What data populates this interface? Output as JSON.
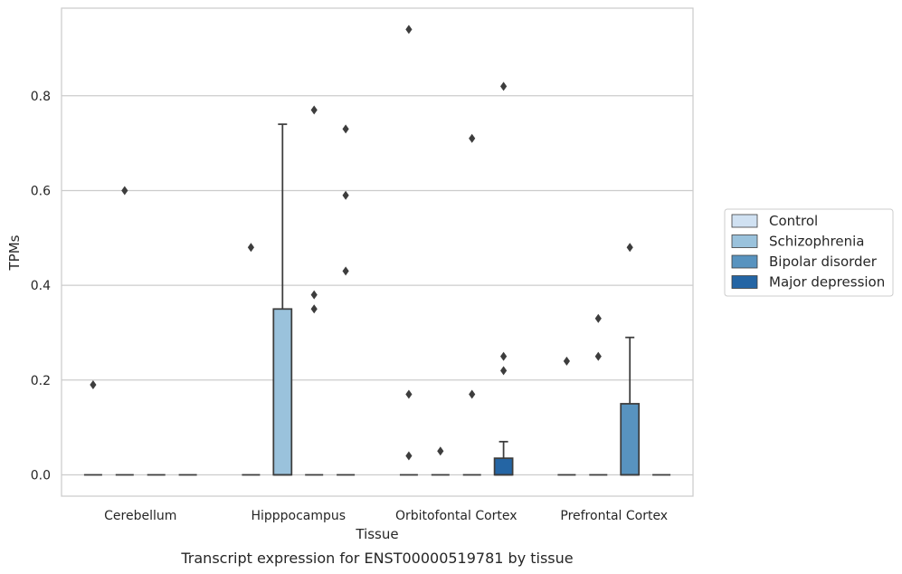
{
  "chart_data": {
    "type": "box",
    "caption": "Transcript expression for ENST00000519781 by tissue",
    "xlabel": "Tissue",
    "ylabel": "TPMs",
    "categories": [
      "Cerebellum",
      "Hipppocampus",
      "Orbitofontal Cortex",
      "Prefrontal Cortex"
    ],
    "ylim": [
      -0.045,
      0.985
    ],
    "yticks": [
      0.0,
      0.2,
      0.4,
      0.6,
      0.8
    ],
    "ytick_labels": [
      "0.0",
      "0.2",
      "0.4",
      "0.6",
      "0.8"
    ],
    "grid": "horizontal",
    "legend_position": "right",
    "series": [
      {
        "name": "Control",
        "color": "#d0e1f2",
        "boxes": [
          {
            "q1": 0,
            "median": 0,
            "q3": 0,
            "whisker_low": 0,
            "whisker_high": 0,
            "outliers": [
              0.19
            ]
          },
          {
            "q1": 0,
            "median": 0,
            "q3": 0,
            "whisker_low": 0,
            "whisker_high": 0,
            "outliers": [
              0.48
            ]
          },
          {
            "q1": 0,
            "median": 0,
            "q3": 0,
            "whisker_low": 0,
            "whisker_high": 0,
            "outliers": [
              0.04,
              0.17,
              0.94
            ]
          },
          {
            "q1": 0,
            "median": 0,
            "q3": 0,
            "whisker_low": 0,
            "whisker_high": 0,
            "outliers": [
              0.24
            ]
          }
        ]
      },
      {
        "name": "Schizophrenia",
        "color": "#9ac2dc",
        "boxes": [
          {
            "q1": 0,
            "median": 0,
            "q3": 0,
            "whisker_low": 0,
            "whisker_high": 0,
            "outliers": [
              0.6
            ]
          },
          {
            "q1": 0,
            "median": 0,
            "q3": 0.35,
            "whisker_low": 0,
            "whisker_high": 0.74,
            "outliers": []
          },
          {
            "q1": 0,
            "median": 0,
            "q3": 0,
            "whisker_low": 0,
            "whisker_high": 0,
            "outliers": [
              0.05
            ]
          },
          {
            "q1": 0,
            "median": 0,
            "q3": 0,
            "whisker_low": 0,
            "whisker_high": 0,
            "outliers": [
              0.25,
              0.33
            ]
          }
        ]
      },
      {
        "name": "Bipolar disorder",
        "color": "#5893bf",
        "boxes": [
          {
            "q1": 0,
            "median": 0,
            "q3": 0,
            "whisker_low": 0,
            "whisker_high": 0,
            "outliers": []
          },
          {
            "q1": 0,
            "median": 0,
            "q3": 0,
            "whisker_low": 0,
            "whisker_high": 0,
            "outliers": [
              0.35,
              0.38,
              0.77
            ]
          },
          {
            "q1": 0,
            "median": 0,
            "q3": 0,
            "whisker_low": 0,
            "whisker_high": 0,
            "outliers": [
              0.17,
              0.71
            ]
          },
          {
            "q1": 0,
            "median": 0,
            "q3": 0.15,
            "whisker_low": 0,
            "whisker_high": 0.29,
            "outliers": [
              0.48
            ]
          }
        ]
      },
      {
        "name": "Major depression",
        "color": "#2465a4",
        "boxes": [
          {
            "q1": 0,
            "median": 0,
            "q3": 0,
            "whisker_low": 0,
            "whisker_high": 0,
            "outliers": []
          },
          {
            "q1": 0,
            "median": 0,
            "q3": 0,
            "whisker_low": 0,
            "whisker_high": 0,
            "outliers": [
              0.43,
              0.59,
              0.73
            ]
          },
          {
            "q1": 0,
            "median": 0,
            "q3": 0.035,
            "whisker_low": 0,
            "whisker_high": 0.07,
            "outliers": [
              0.22,
              0.25,
              0.82
            ]
          },
          {
            "q1": 0,
            "median": 0,
            "q3": 0,
            "whisker_low": 0,
            "whisker_high": 0,
            "outliers": []
          }
        ]
      }
    ]
  }
}
